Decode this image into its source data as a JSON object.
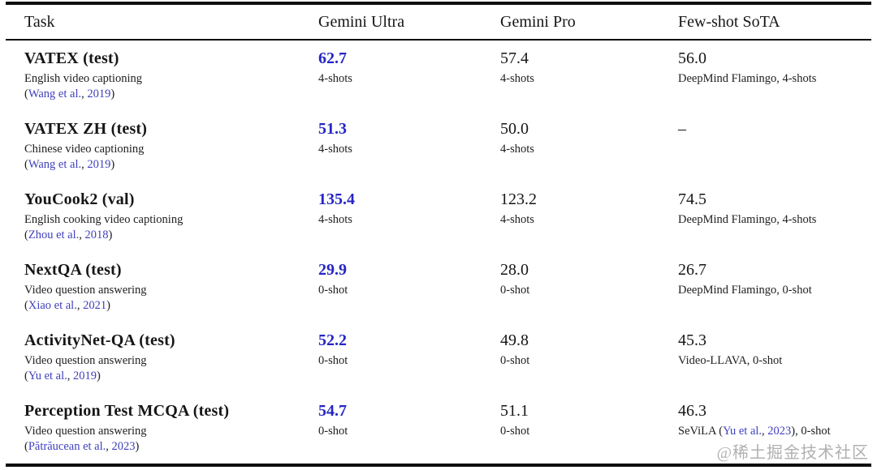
{
  "colors": {
    "value_blue": "#2525c4",
    "link_blue": "#4040bd",
    "text": "#161616",
    "rule": "#0e0e0e",
    "watermark_gray": "#b0b0b0"
  },
  "header": {
    "columns": [
      "Task",
      "Gemini Ultra",
      "Gemini Pro",
      "Few-shot SoTA"
    ]
  },
  "punctuation": {
    "open": "(",
    "sep": ", ",
    "close": ")"
  },
  "rows": [
    {
      "task": "VATEX (test)",
      "desc": "English video captioning",
      "cite": {
        "author": "Wang et al.",
        "year": "2019"
      },
      "ultra": {
        "value": "62.7",
        "shots": "4-shots"
      },
      "pro": {
        "value": "57.4",
        "shots": "4-shots"
      },
      "sota": {
        "value": "56.0",
        "detail_prefix": "DeepMind Flamingo, 4-shots",
        "detail_cite": null,
        "detail_suffix": ""
      }
    },
    {
      "task": "VATEX ZH (test)",
      "desc": "Chinese video captioning",
      "cite": {
        "author": "Wang et al.",
        "year": "2019"
      },
      "ultra": {
        "value": "51.3",
        "shots": "4-shots"
      },
      "pro": {
        "value": "50.0",
        "shots": "4-shots"
      },
      "sota": {
        "value": "–",
        "detail_prefix": "",
        "detail_cite": null,
        "detail_suffix": ""
      }
    },
    {
      "task": "YouCook2 (val)",
      "desc": "English cooking video captioning",
      "cite": {
        "author": "Zhou et al.",
        "year": "2018"
      },
      "ultra": {
        "value": "135.4",
        "shots": "4-shots"
      },
      "pro": {
        "value": "123.2",
        "shots": "4-shots"
      },
      "sota": {
        "value": "74.5",
        "detail_prefix": "DeepMind Flamingo, 4-shots",
        "detail_cite": null,
        "detail_suffix": ""
      }
    },
    {
      "task": "NextQA (test)",
      "desc": "Video question answering",
      "cite": {
        "author": "Xiao et al.",
        "year": "2021"
      },
      "ultra": {
        "value": "29.9",
        "shots": "0-shot"
      },
      "pro": {
        "value": "28.0",
        "shots": "0-shot"
      },
      "sota": {
        "value": "26.7",
        "detail_prefix": "DeepMind Flamingo, 0-shot",
        "detail_cite": null,
        "detail_suffix": ""
      }
    },
    {
      "task": "ActivityNet-QA (test)",
      "desc": "Video question answering",
      "cite": {
        "author": "Yu et al.",
        "year": "2019"
      },
      "ultra": {
        "value": "52.2",
        "shots": "0-shot"
      },
      "pro": {
        "value": "49.8",
        "shots": "0-shot"
      },
      "sota": {
        "value": "45.3",
        "detail_prefix": "Video-LLAVA, 0-shot",
        "detail_cite": null,
        "detail_suffix": ""
      }
    },
    {
      "task": "Perception Test MCQA (test)",
      "desc": "Video question answering",
      "cite": {
        "author": "Pătrăucean et al.",
        "year": "2023"
      },
      "ultra": {
        "value": "54.7",
        "shots": "0-shot"
      },
      "pro": {
        "value": "51.1",
        "shots": "0-shot"
      },
      "sota": {
        "value": "46.3",
        "detail_prefix": "SeViLA (",
        "detail_cite": {
          "author": "Yu et al.",
          "year": "2023"
        },
        "detail_suffix": "), 0-shot"
      }
    }
  ],
  "watermark": "@稀土掘金技术社区"
}
